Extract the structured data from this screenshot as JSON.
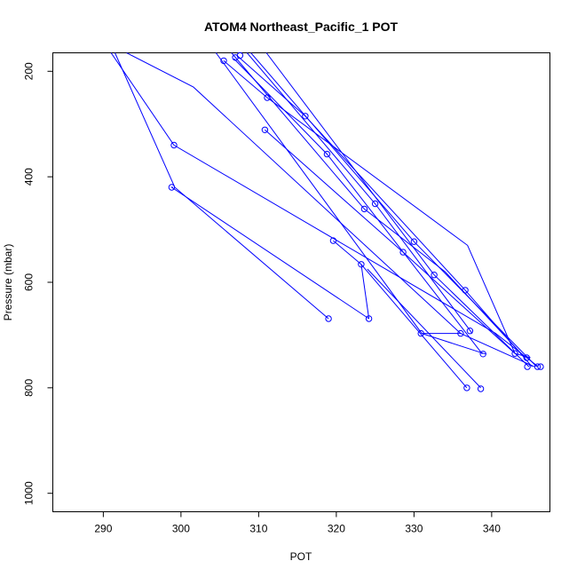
{
  "chart_data": {
    "type": "line",
    "title": "ATOM4 Northeast_Pacific_1 POT",
    "xlabel": "POT",
    "ylabel": "Pressure (mbar)",
    "xlim": [
      283.5,
      347.5
    ],
    "ylim": [
      1035,
      165
    ],
    "y_reversed": true,
    "grid": false,
    "legend": "none",
    "color": "#0000ff",
    "xticks": [
      290,
      300,
      310,
      320,
      330,
      340
    ],
    "yticks": [
      200,
      400,
      600,
      800,
      1000
    ],
    "xtick_labels": [
      "290",
      "300",
      "310",
      "320",
      "330",
      "340"
    ],
    "ytick_labels": [
      "200",
      "400",
      "600",
      "800",
      "1000"
    ],
    "series": [
      {
        "values": [
          [
            291.0,
            165
          ],
          [
            299.1,
            340
          ],
          [
            340.5,
            697
          ],
          [
            346.0,
            760
          ]
        ]
      },
      {
        "values": [
          [
            293.0,
            165
          ],
          [
            301.6,
            230
          ],
          [
            336.0,
            697
          ],
          [
            345.5,
            760
          ]
        ]
      },
      {
        "values": [
          [
            299.0,
            420
          ],
          [
            298.8,
            420
          ],
          [
            324.2,
            669
          ]
        ]
      },
      {
        "values": [
          [
            319.0,
            669
          ],
          [
            299.2,
            420
          ],
          [
            291.5,
            165
          ]
        ]
      },
      {
        "values": [
          [
            305.5,
            180
          ],
          [
            311.1,
            250
          ],
          [
            336.9,
            530
          ],
          [
            343.0,
            735
          ]
        ]
      },
      {
        "values": [
          [
            307.2,
            170
          ],
          [
            316.0,
            285
          ],
          [
            336.6,
            615
          ],
          [
            345.2,
            760
          ]
        ]
      },
      {
        "values": [
          [
            304.5,
            165
          ],
          [
            331.0,
            697
          ],
          [
            336.1,
            697
          ]
        ]
      },
      {
        "values": [
          [
            306.8,
            176
          ],
          [
            318.8,
            357
          ],
          [
            338.8,
            736
          ]
        ]
      },
      {
        "values": [
          [
            308.5,
            165
          ],
          [
            325.0,
            451
          ],
          [
            337.5,
            697
          ]
        ]
      },
      {
        "values": [
          [
            310.8,
            311
          ],
          [
            328.6,
            543
          ],
          [
            343.0,
            735
          ],
          [
            345.0,
            743
          ]
        ]
      },
      {
        "values": [
          [
            306.5,
            165
          ],
          [
            323.6,
            461
          ],
          [
            334.0,
            580
          ],
          [
            344.3,
            743
          ]
        ]
      },
      {
        "values": [
          [
            309.0,
            165
          ],
          [
            330.0,
            523
          ],
          [
            345.8,
            760
          ]
        ]
      },
      {
        "values": [
          [
            311.0,
            165
          ],
          [
            332.6,
            586
          ],
          [
            344.8,
            760
          ]
        ]
      },
      {
        "values": [
          [
            319.6,
            521
          ],
          [
            323.2,
            566
          ],
          [
            324.2,
            669
          ]
        ]
      },
      {
        "values": [
          [
            323.2,
            566
          ],
          [
            336.8,
            800
          ]
        ]
      },
      {
        "values": [
          [
            324.0,
            575
          ],
          [
            338.6,
            800
          ]
        ]
      },
      {
        "values": [
          [
            331.0,
            697
          ],
          [
            339.2,
            736
          ]
        ]
      }
    ],
    "points": [
      [
        299.1,
        340
      ],
      [
        298.8,
        420
      ],
      [
        319.0,
        669
      ],
      [
        324.2,
        669
      ],
      [
        319.6,
        521
      ],
      [
        323.2,
        566
      ],
      [
        330.9,
        697
      ],
      [
        336.0,
        697
      ],
      [
        337.2,
        692
      ],
      [
        338.9,
        736
      ],
      [
        336.8,
        800
      ],
      [
        338.6,
        802
      ],
      [
        343.0,
        735
      ],
      [
        344.5,
        743
      ],
      [
        344.6,
        760
      ],
      [
        345.9,
        760
      ],
      [
        346.3,
        760
      ],
      [
        336.6,
        615
      ],
      [
        332.6,
        586
      ],
      [
        330.0,
        523
      ],
      [
        328.6,
        543
      ],
      [
        325.0,
        451
      ],
      [
        323.6,
        461
      ],
      [
        318.8,
        357
      ],
      [
        316.0,
        285
      ],
      [
        311.1,
        250
      ],
      [
        310.8,
        311
      ],
      [
        305.5,
        180
      ],
      [
        307.0,
        174
      ],
      [
        307.6,
        170
      ]
    ]
  }
}
